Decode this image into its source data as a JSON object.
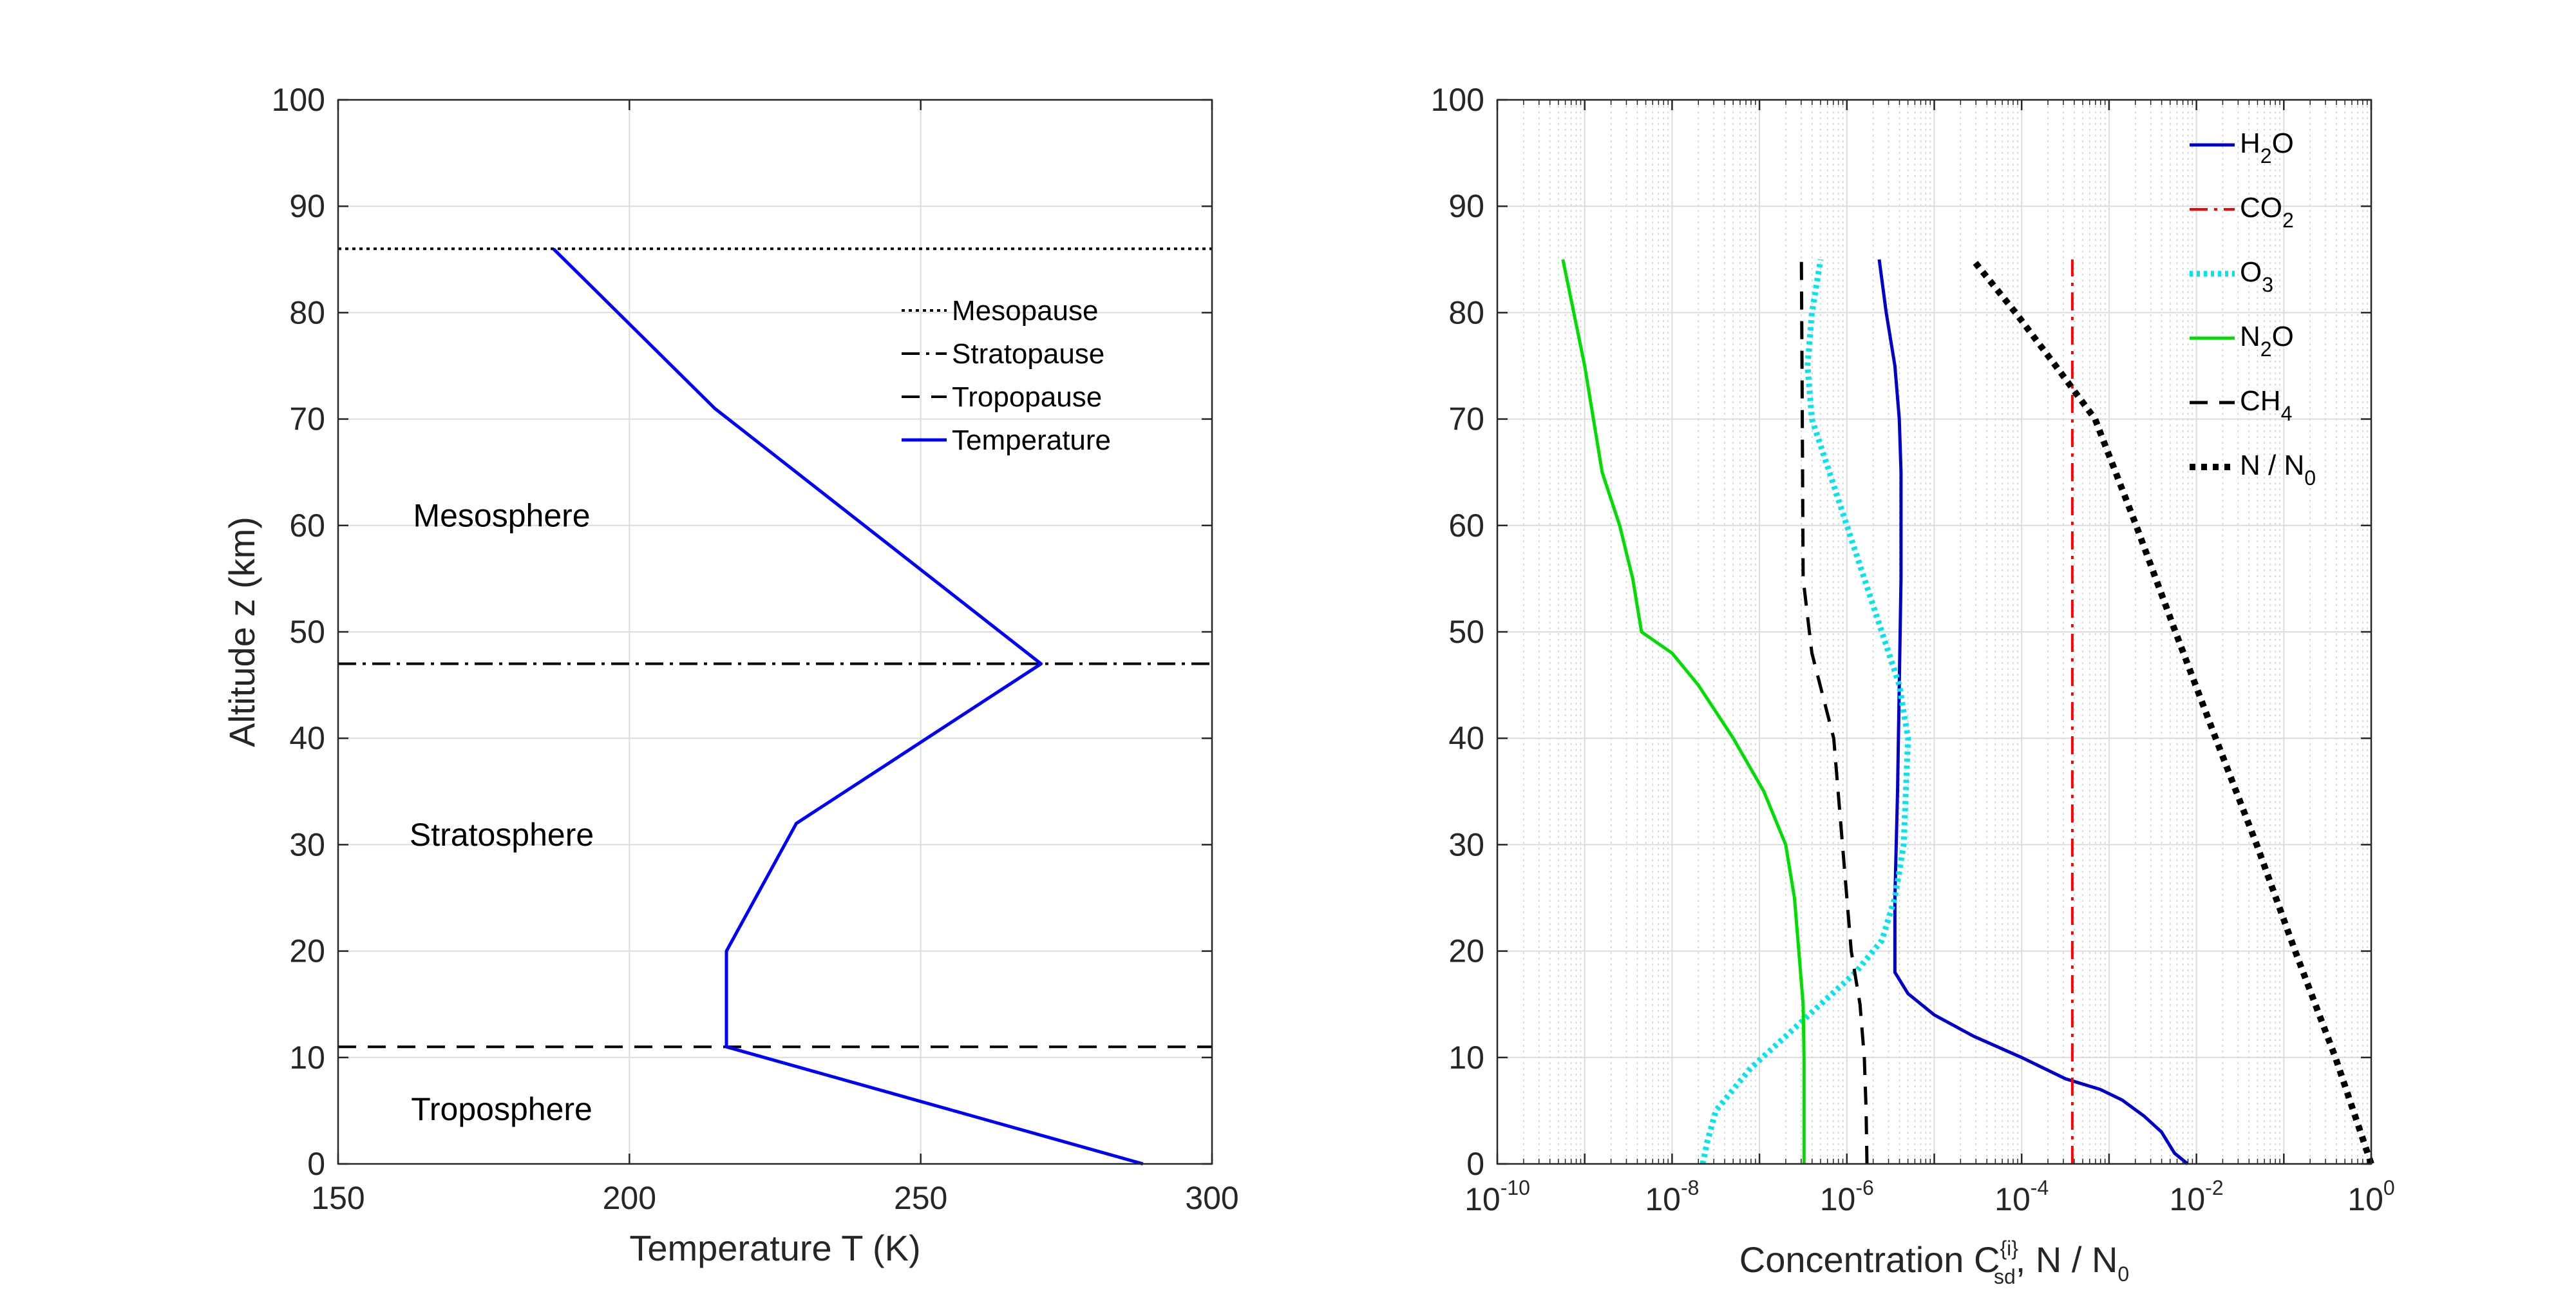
{
  "chart_data": [
    {
      "type": "line",
      "xlabel": "Temperature T (K)",
      "ylabel": "Altitude z (km)",
      "xlim": [
        150,
        300
      ],
      "ylim": [
        0,
        100
      ],
      "xticks": [
        150,
        200,
        250,
        300
      ],
      "yticks": [
        0,
        10,
        20,
        30,
        40,
        50,
        60,
        70,
        80,
        90,
        100
      ],
      "grid": true,
      "legend_position": "top-right",
      "series": [
        {
          "name": "Temperature",
          "color": "#0000ff",
          "style": "solid",
          "x": [
            288.15,
            216.65,
            216.65,
            228.65,
            270.65,
            270.65,
            214.65,
            186.95
          ],
          "y": [
            0,
            11,
            20,
            32,
            47,
            47,
            71,
            86
          ]
        }
      ],
      "hlines": [
        {
          "name": "Mesopause",
          "y": 86,
          "style": "dotted",
          "color": "#000000"
        },
        {
          "name": "Stratopause",
          "y": 47,
          "style": "dashdot",
          "color": "#000000"
        },
        {
          "name": "Tropopause",
          "y": 11,
          "style": "dashed",
          "color": "#000000"
        }
      ],
      "annotations": [
        {
          "text": "Mesosphere",
          "x": 172,
          "y": 61
        },
        {
          "text": "Stratosphere",
          "x": 172,
          "y": 31
        },
        {
          "text": "Troposphere",
          "x": 172,
          "y": 5.2
        }
      ]
    },
    {
      "type": "line",
      "xlabel": "Concentration C",
      "xlabel_superscript": "{i}",
      "xlabel_subscript": "sd",
      "xlabel_rest": ", N / N",
      "xlabel_rest_sub": "0",
      "ylabel": "",
      "xscale": "log",
      "xlim_exp": [
        -10,
        0
      ],
      "ylim": [
        0,
        100
      ],
      "xticks_exp": [
        -10,
        -8,
        -6,
        -4,
        -2,
        0
      ],
      "yticks": [
        0,
        10,
        20,
        30,
        40,
        50,
        60,
        70,
        80,
        90,
        100
      ],
      "grid": true,
      "legend_position": "top-right",
      "series": [
        {
          "name": "H2O",
          "base": "H",
          "sub": "2",
          "suffix": "O",
          "color": "#0000cc",
          "style": "solid",
          "log10x": [
            -2.1,
            -2.25,
            -2.4,
            -2.6,
            -2.85,
            -3.1,
            -3.5,
            -4.0,
            -4.55,
            -5.0,
            -5.3,
            -5.45,
            -5.45,
            -5.42,
            -5.4,
            -5.38,
            -5.38,
            -5.4,
            -5.45,
            -5.55,
            -5.63
          ],
          "y": [
            0,
            1,
            3,
            4.5,
            6,
            7,
            8,
            10,
            12,
            14,
            16,
            18,
            25,
            35,
            45,
            55,
            65,
            70,
            75,
            80,
            85
          ]
        },
        {
          "name": "CO2",
          "base": "CO",
          "sub": "2",
          "suffix": "",
          "color": "#ff0000",
          "style": "dashdot",
          "log10x": [
            -3.42,
            -3.42
          ],
          "y": [
            0,
            85
          ]
        },
        {
          "name": "O3",
          "base": "O",
          "sub": "3",
          "suffix": "",
          "color": "#00e5ee",
          "style": "dotted",
          "log10x": [
            -7.65,
            -7.6,
            -7.5,
            -7.1,
            -6.7,
            -6.3,
            -5.9,
            -5.6,
            -5.45,
            -5.35,
            -5.3,
            -5.4,
            -5.6,
            -5.8,
            -6.0,
            -6.2,
            -6.4,
            -6.45,
            -6.4,
            -6.3
          ],
          "y": [
            0,
            2,
            5,
            9,
            12,
            15,
            18,
            21,
            25,
            30,
            40,
            45,
            50,
            55,
            60,
            65,
            70,
            75,
            80,
            85
          ]
        },
        {
          "name": "N2O",
          "base": "N",
          "sub": "2",
          "suffix": "O",
          "color": "#00dd00",
          "style": "solid",
          "log10x": [
            -6.49,
            -6.49,
            -6.5,
            -6.55,
            -6.6,
            -6.7,
            -6.95,
            -7.3,
            -7.7,
            -8.0,
            -8.35,
            -8.45,
            -8.6,
            -8.8,
            -9.0,
            -9.25
          ],
          "y": [
            0,
            10,
            15,
            20,
            25,
            30,
            35,
            40,
            45,
            48,
            50,
            55,
            60,
            65,
            75,
            85
          ]
        },
        {
          "name": "CH4",
          "base": "CH",
          "sub": "4",
          "suffix": "",
          "color": "#000000",
          "style": "dashed",
          "log10x": [
            -5.77,
            -5.78,
            -5.8,
            -5.85,
            -5.95,
            -6.05,
            -6.15,
            -6.4,
            -6.5,
            -6.51,
            -6.52
          ],
          "y": [
            0,
            5,
            10,
            15,
            20,
            30,
            40,
            48,
            55,
            70,
            85
          ]
        },
        {
          "name": "N / N0",
          "base": "N / N",
          "sub": "0",
          "suffix": "",
          "color": "#000000",
          "style": "dotted-thick",
          "log10x": [
            0.0,
            -0.41,
            -0.87,
            -1.31,
            -1.78,
            -2.24,
            -2.69,
            -3.16,
            -3.61,
            -4.07,
            -4.56
          ],
          "y": [
            0,
            10,
            20,
            30,
            40,
            50,
            60,
            70,
            75,
            80,
            85
          ]
        }
      ]
    }
  ]
}
